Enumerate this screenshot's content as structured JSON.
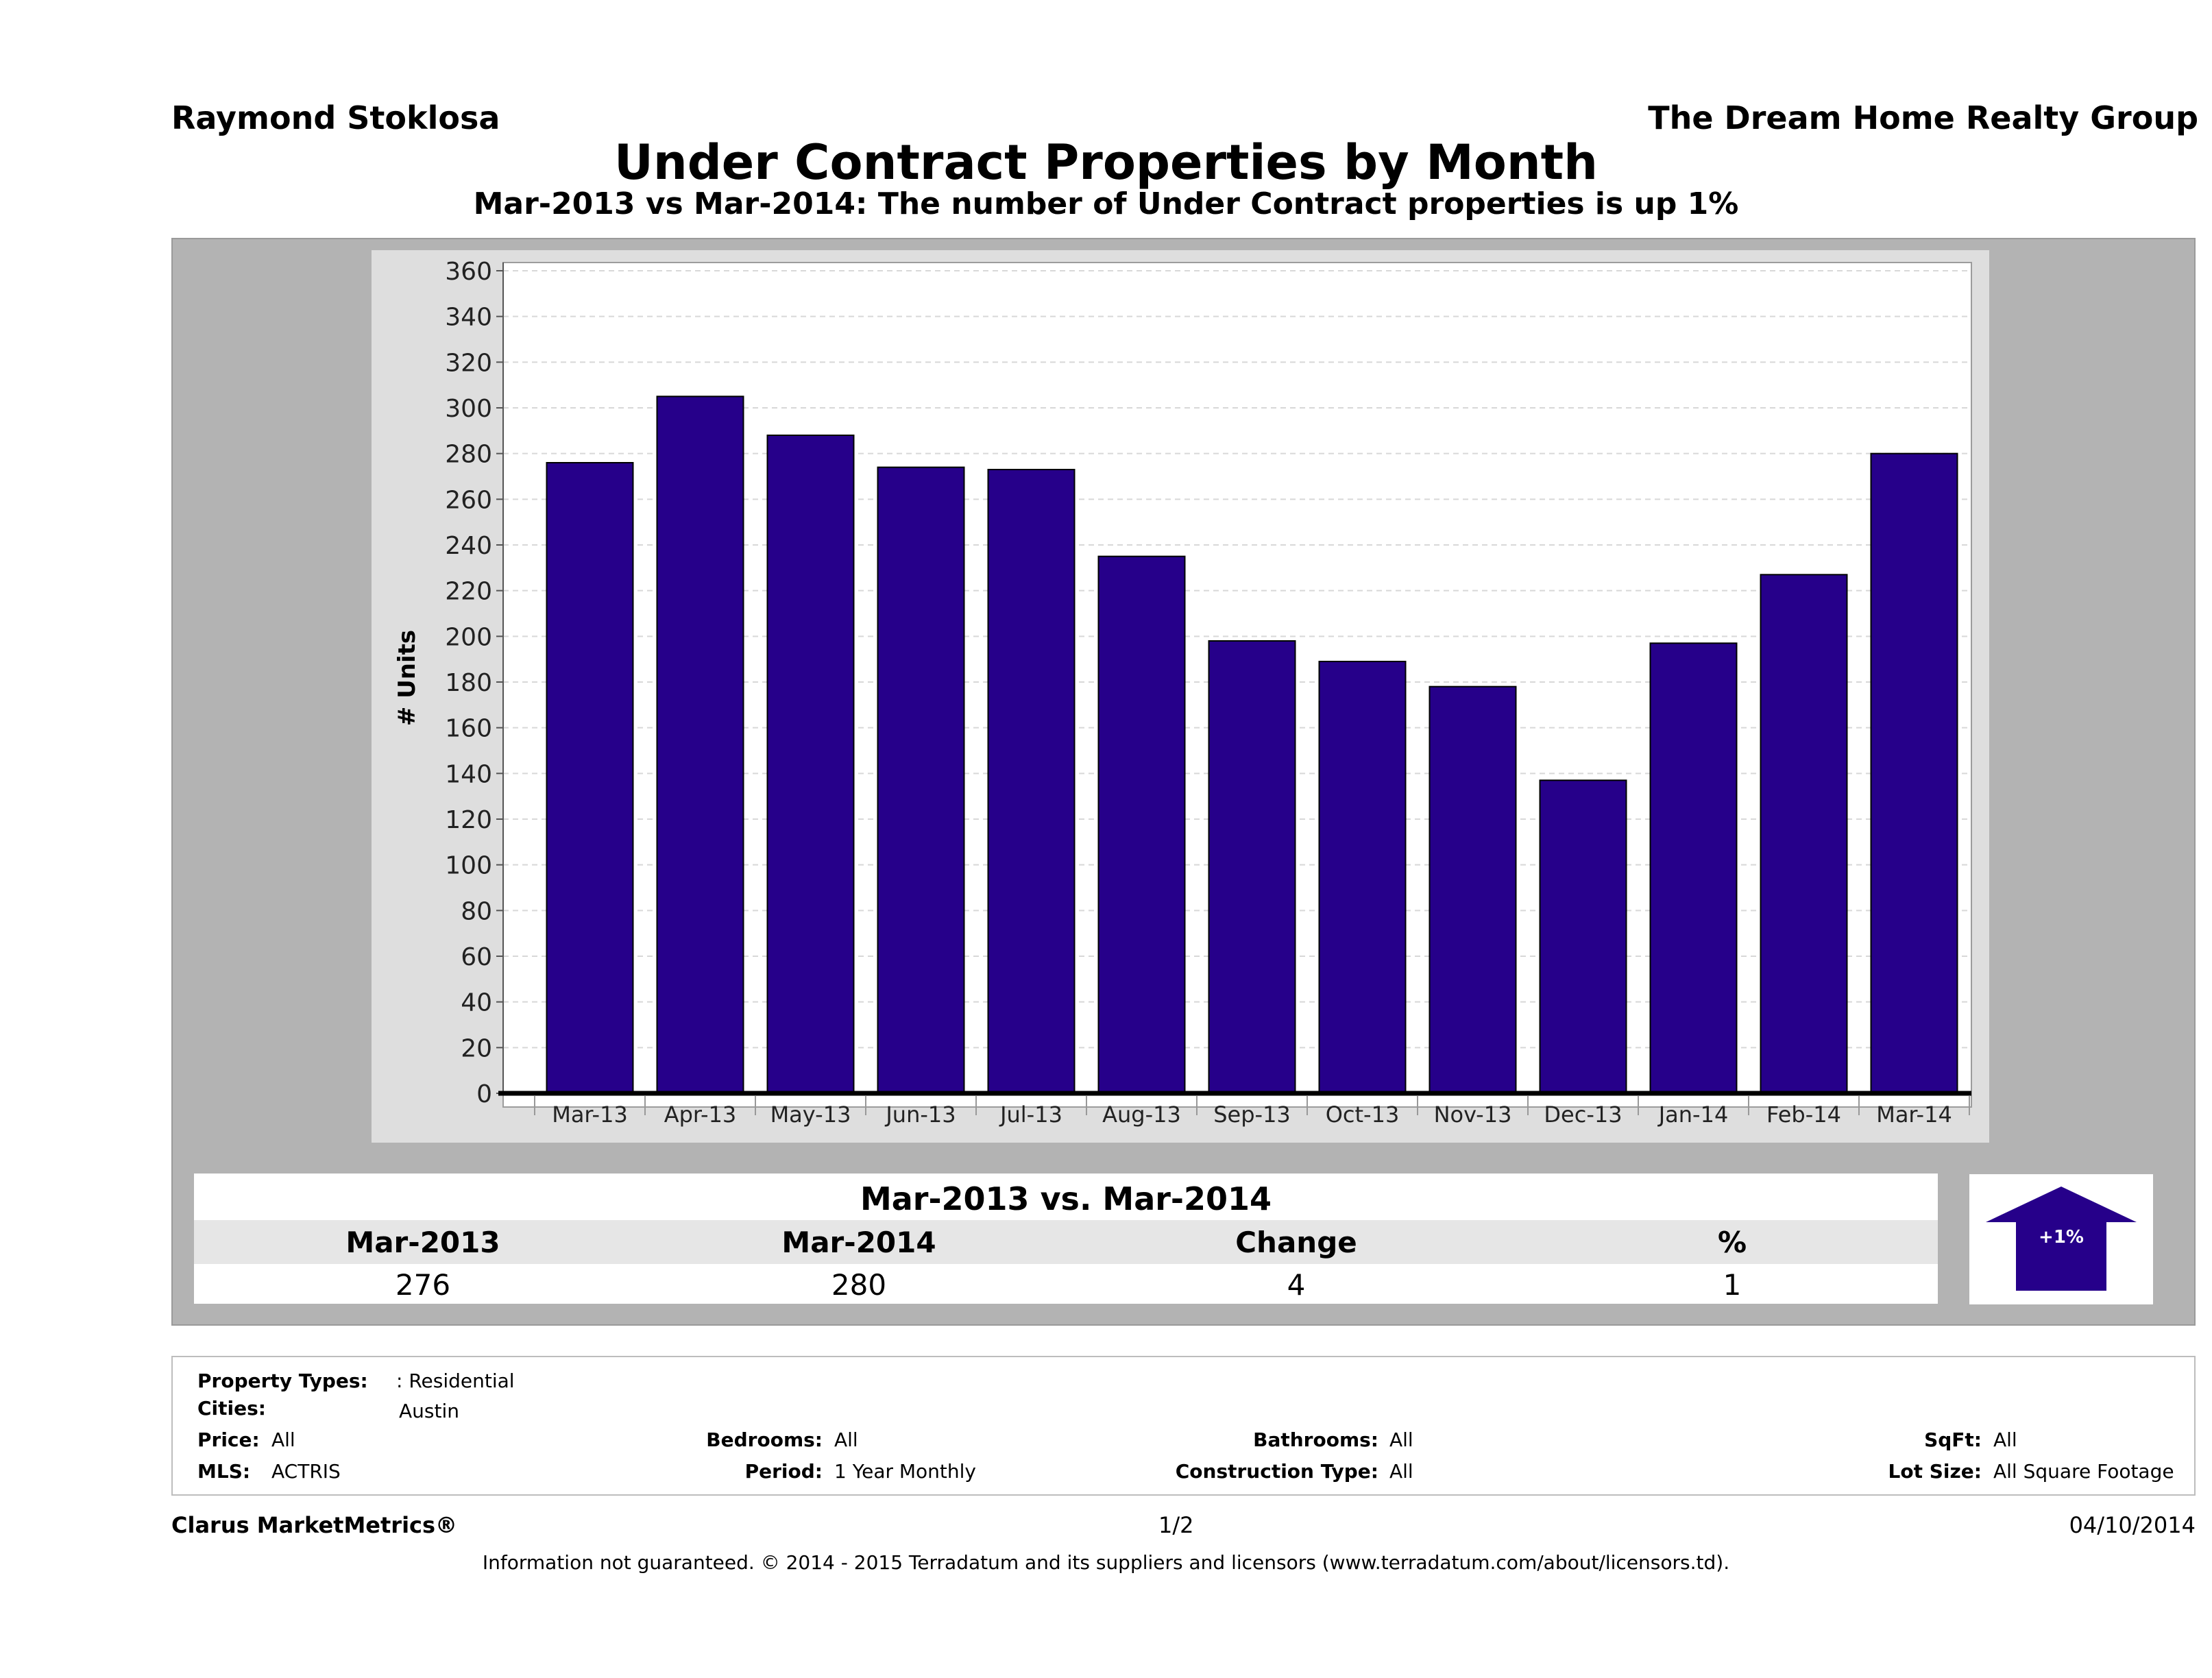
{
  "header": {
    "agent": "Raymond Stoklosa",
    "company": "The Dream Home Realty Group",
    "title": "Under Contract Properties by Month",
    "subtitle": "Mar-2013 vs Mar-2014: The number of Under Contract  properties is up 1%"
  },
  "chart_data": {
    "type": "bar",
    "title": "Under Contract Properties by Month",
    "ylabel": "# Units",
    "xlabel": "",
    "ylim": [
      0,
      360
    ],
    "yticks": [
      0,
      20,
      40,
      60,
      80,
      100,
      120,
      140,
      160,
      180,
      200,
      220,
      240,
      260,
      280,
      300,
      320,
      340,
      360
    ],
    "grid": true,
    "categories": [
      "Mar-13",
      "Apr-13",
      "May-13",
      "Jun-13",
      "Jul-13",
      "Aug-13",
      "Sep-13",
      "Oct-13",
      "Nov-13",
      "Dec-13",
      "Jan-14",
      "Feb-14",
      "Mar-14"
    ],
    "values": [
      276,
      305,
      288,
      274,
      273,
      235,
      198,
      189,
      178,
      137,
      197,
      227,
      280
    ],
    "bar_color": "#26008a"
  },
  "summary": {
    "title": "Mar-2013 vs. Mar-2014",
    "headers": [
      "Mar-2013",
      "Mar-2014",
      "Change",
      "%"
    ],
    "values": [
      "276",
      "280",
      "4",
      "1"
    ],
    "badge": "+1%",
    "badge_direction": "up",
    "badge_color": "#26008a"
  },
  "details": {
    "property_types_label": "Property Types:",
    "property_types_value": ": Residential",
    "cities_label": "Cities:",
    "cities_value": "Austin",
    "price_label": "Price:",
    "price_value": "All",
    "mls_label": "MLS:",
    "mls_value": "ACTRIS",
    "bedrooms_label": "Bedrooms:",
    "bedrooms_value": "All",
    "period_label": "Period:",
    "period_value": "1 Year Monthly",
    "bathrooms_label": "Bathrooms:",
    "bathrooms_value": "All",
    "construction_label": "Construction Type:",
    "construction_value": "All",
    "sqft_label": "SqFt:",
    "sqft_value": "All",
    "lot_label": "Lot Size:",
    "lot_value": "All Square Footage"
  },
  "footer": {
    "brand": "Clarus MarketMetrics®",
    "page": "1/2",
    "date": "04/10/2014",
    "disclaimer": "Information not guaranteed. © 2014 - 2015 Terradatum and its suppliers and licensors (www.terradatum.com/about/licensors.td)."
  }
}
